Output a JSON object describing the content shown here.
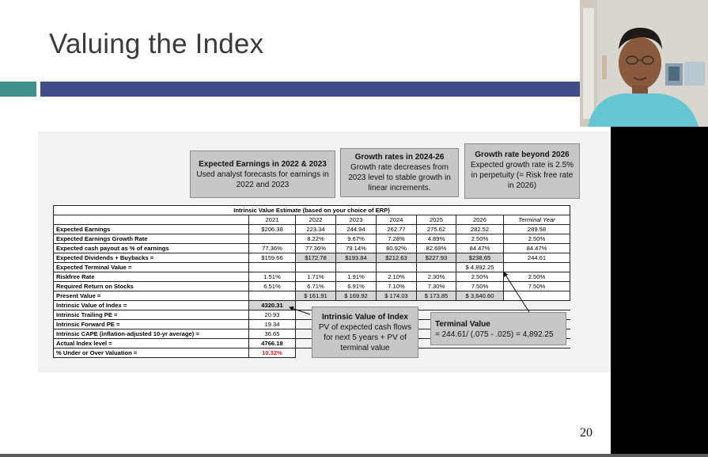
{
  "slide": {
    "title": "Valuing the Index",
    "page_number": "20"
  },
  "callouts": {
    "earnings": {
      "title": "Expected Earnings in 2022 & 2023",
      "body": "Used analyst forecasts for earnings in 2022 and 2023"
    },
    "growth_2426": {
      "title": "Growth rates in 2024-26",
      "body": "Growth rate decreases from 2023 level to stable growth in linear increments."
    },
    "growth_beyond": {
      "title": "Growth rate beyond 2026",
      "body": "Expected growth rate is 2.5% in perpetuity (= Risk free rate in 2026)"
    },
    "intrinsic": {
      "title": "Intrinsic Value of Index",
      "body": "PV of expected cash flows for next 5 years + PV of terminal value"
    },
    "terminal": {
      "title": "Terminal Value",
      "body": "= 244.61/ (.075 - .025) = 4,892.25"
    }
  },
  "table": {
    "title": "Intrinsic Value Estimate (based on your choice of ERP)",
    "headers": [
      "",
      "2021",
      "2022",
      "2023",
      "2024",
      "2025",
      "2026",
      "Terminal Year"
    ],
    "rows": [
      [
        "Expected Earnings",
        "$206.38",
        "223.34",
        "244.94",
        "262.77",
        "275.62",
        "282.52",
        "289.58"
      ],
      [
        "Expected Earnings Growth Rate",
        "",
        "8.22%",
        "9.67%",
        "7.28%",
        "4.89%",
        "2.50%",
        "2.50%"
      ],
      [
        "Expected cash payout as % of earnings",
        "77.36%",
        "77.36%",
        "79.14%",
        "80.92%",
        "82.69%",
        "84.47%",
        "84.47%"
      ],
      [
        "Expected Dividends + Buybacks =",
        "$159.66",
        "$172.78",
        "$193.84",
        "$212.63",
        "$227.93",
        "$238.65",
        "244.61"
      ],
      [
        "Expected Terminal Value =",
        "",
        "",
        "",
        "",
        "",
        "$ 4,892.25",
        ""
      ],
      [
        "Riskfree Rate",
        "1.51%",
        "1.71%",
        "1.91%",
        "2.10%",
        "2.30%",
        "2.50%",
        "2.50%"
      ],
      [
        "Required Return on Stocks",
        "6.51%",
        "6.71%",
        "6.91%",
        "7.10%",
        "7.30%",
        "7.50%",
        "7.50%"
      ],
      [
        "Present Value =",
        "",
        "$ 161.91",
        "$ 169.92",
        "$ 174.03",
        "$ 173.85",
        "$ 3,640.60",
        ""
      ]
    ],
    "summary": [
      [
        "Intrinsic Value of Index =",
        "4320.31"
      ],
      [
        "Intrinsic Trailing PE =",
        "20.93"
      ],
      [
        "Intrinsic Forward PE =",
        "19.34"
      ],
      [
        "Intrinsic CAPE (inflation-adjusted 10-yr average) =",
        "36.65"
      ],
      [
        "Actual Index level =",
        "4766.18"
      ],
      [
        "% Under or Over Valuation =",
        "10.32%"
      ]
    ]
  },
  "colors": {
    "accent_teal": "#3f8f8a",
    "accent_navy": "#3e4d86",
    "callout_fill": "#c7c7c7",
    "highlight_red": "#d22222"
  },
  "webcam": {
    "icon": "presenter-video-feed"
  }
}
